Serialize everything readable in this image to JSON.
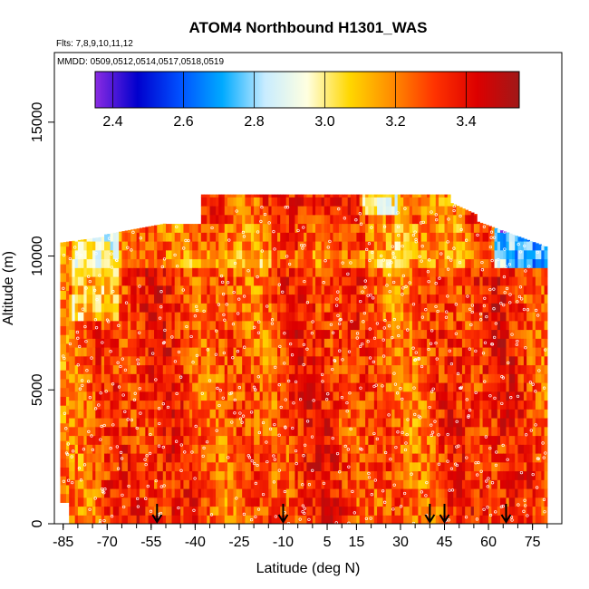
{
  "chart_data": {
    "type": "heatmap",
    "title": "ATOM4 Northbound H1301_WAS",
    "subtitle_flights": "Flts: 7,8,9,10,11,12",
    "subtitle_dates": "MMDD: 0509,0512,0514,0517,0518,0519",
    "xlabel": "Latitude (deg N)",
    "ylabel": "Altitude (m)",
    "xlim": [
      -88,
      85
    ],
    "ylim": [
      0,
      17600
    ],
    "x_ticks": [
      -85,
      -70,
      -55,
      -40,
      -25,
      -10,
      5,
      15,
      30,
      45,
      60,
      75
    ],
    "x_tick_labels": [
      "-85",
      "-70",
      "-55",
      "-40",
      "-25",
      "-10",
      "5",
      "15",
      "30",
      "45",
      "60",
      "75"
    ],
    "y_ticks": [
      0,
      5000,
      10000,
      15000
    ],
    "y_tick_labels": [
      "0",
      "5000",
      "10000",
      "15000"
    ],
    "colorbar": {
      "min": 2.35,
      "max": 3.55,
      "ticks": [
        2.4,
        2.6,
        2.8,
        3.0,
        3.2,
        3.4
      ],
      "tick_labels": [
        "2.4",
        "2.6",
        "2.8",
        "3.0",
        "3.2",
        "3.4"
      ],
      "colors": [
        "#8a2be2",
        "#0000cd",
        "#0050ff",
        "#00aaff",
        "#c8ecff",
        "#ffffe0",
        "#ffd700",
        "#ff8c00",
        "#ff3300",
        "#dd0000",
        "#a01818"
      ]
    },
    "profile_arrows_lat": [
      -53,
      -10,
      40,
      45,
      66
    ]
  }
}
